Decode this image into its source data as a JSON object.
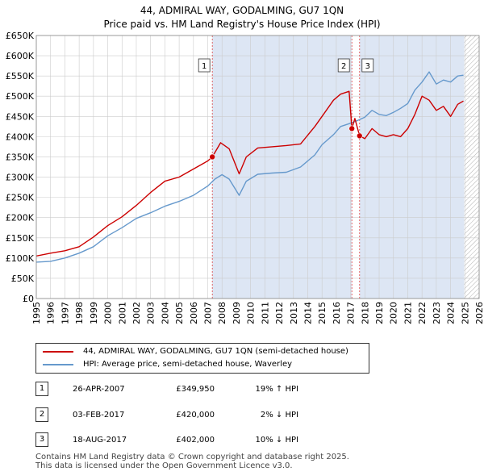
{
  "title_line1": "44, ADMIRAL WAY, GODALMING, GU7 1QN",
  "title_line2": "Price paid vs. HM Land Registry's House Price Index (HPI)",
  "colors": {
    "property": "#cc0000",
    "hpi": "#6699cc",
    "shade": "#dde6f4"
  },
  "legend": {
    "property_label": "44, ADMIRAL WAY, GODALMING, GU7 1QN (semi-detached house)",
    "hpi_label": "HPI: Average price, semi-detached house, Waverley"
  },
  "transactions": [
    {
      "num": "1",
      "date": "26-APR-2007",
      "price": "£349,950",
      "hpi": "19% ↑ HPI"
    },
    {
      "num": "2",
      "date": "03-FEB-2017",
      "price": "£420,000",
      "hpi": "2% ↓ HPI"
    },
    {
      "num": "3",
      "date": "18-AUG-2017",
      "price": "£402,000",
      "hpi": "10% ↓ HPI"
    }
  ],
  "footer_line1": "Contains HM Land Registry data © Crown copyright and database right 2025.",
  "footer_line2": "This data is licensed under the Open Government Licence v3.0.",
  "chart_data": {
    "type": "line",
    "title": "44, ADMIRAL WAY, GODALMING, GU7 1QN — Price paid vs. HM Land Registry's House Price Index (HPI)",
    "xlim": [
      1995,
      2026
    ],
    "ylim": [
      0,
      650000
    ],
    "x_ticks": [
      1995,
      1996,
      1997,
      1998,
      1999,
      2000,
      2001,
      2002,
      2003,
      2004,
      2005,
      2006,
      2007,
      2008,
      2009,
      2010,
      2011,
      2012,
      2013,
      2014,
      2015,
      2016,
      2017,
      2018,
      2019,
      2020,
      2021,
      2022,
      2023,
      2024,
      2025,
      2026
    ],
    "y_ticks": [
      0,
      50000,
      100000,
      150000,
      200000,
      250000,
      300000,
      350000,
      400000,
      450000,
      500000,
      550000,
      600000,
      650000
    ],
    "y_tick_labels": [
      "£0",
      "£50K",
      "£100K",
      "£150K",
      "£200K",
      "£250K",
      "£300K",
      "£350K",
      "£400K",
      "£450K",
      "£500K",
      "£550K",
      "£600K",
      "£650K"
    ],
    "grid": true,
    "shaded_periods": [
      [
        2007.32,
        2017.09
      ],
      [
        2017.63,
        2024.95
      ]
    ],
    "hatched_after": 2024.95,
    "event_markers": [
      {
        "label": "1",
        "x": 2007.32,
        "y": 349950
      },
      {
        "label": "2",
        "x": 2017.09,
        "y": 420000
      },
      {
        "label": "3",
        "x": 2017.63,
        "y": 402000
      }
    ],
    "series": [
      {
        "name": "44, ADMIRAL WAY, GODALMING, GU7 1QN (semi-detached house)",
        "x": [
          1995.0,
          1996.0,
          1997.0,
          1998.0,
          1999.0,
          2000.0,
          2001.0,
          2002.0,
          2003.0,
          2004.0,
          2005.0,
          2006.0,
          2007.0,
          2007.32,
          2007.9,
          2008.5,
          2009.2,
          2009.7,
          2010.5,
          2011.5,
          2012.5,
          2013.5,
          2014.5,
          2015.0,
          2015.8,
          2016.3,
          2016.9,
          2017.09,
          2017.3,
          2017.63,
          2018.0,
          2018.5,
          2019.0,
          2019.5,
          2020.0,
          2020.5,
          2021.0,
          2021.5,
          2022.0,
          2022.5,
          2023.0,
          2023.5,
          2024.0,
          2024.5,
          2024.9
        ],
        "values": [
          105000,
          112000,
          118000,
          128000,
          152000,
          180000,
          202000,
          230000,
          262000,
          290000,
          300000,
          320000,
          340000,
          349950,
          385000,
          370000,
          308000,
          350000,
          372000,
          375000,
          378000,
          382000,
          425000,
          450000,
          490000,
          505000,
          512000,
          420000,
          445000,
          402000,
          395000,
          420000,
          405000,
          400000,
          405000,
          400000,
          420000,
          455000,
          500000,
          490000,
          465000,
          475000,
          450000,
          480000,
          488000
        ]
      },
      {
        "name": "HPI: Average price, semi-detached house, Waverley",
        "x": [
          1995.0,
          1996.0,
          1997.0,
          1998.0,
          1999.0,
          2000.0,
          2001.0,
          2002.0,
          2003.0,
          2004.0,
          2005.0,
          2006.0,
          2007.0,
          2007.5,
          2008.0,
          2008.5,
          2009.2,
          2009.7,
          2010.5,
          2011.5,
          2012.5,
          2013.5,
          2014.5,
          2015.0,
          2015.8,
          2016.3,
          2016.9,
          2017.5,
          2018.0,
          2018.5,
          2019.0,
          2019.5,
          2020.0,
          2020.5,
          2021.0,
          2021.5,
          2022.0,
          2022.5,
          2023.0,
          2023.5,
          2024.0,
          2024.5,
          2024.9
        ],
        "values": [
          90000,
          92000,
          100000,
          112000,
          128000,
          155000,
          175000,
          198000,
          212000,
          228000,
          240000,
          255000,
          278000,
          295000,
          306000,
          295000,
          255000,
          290000,
          307000,
          310000,
          312000,
          325000,
          355000,
          380000,
          405000,
          425000,
          432000,
          440000,
          448000,
          465000,
          455000,
          452000,
          460000,
          470000,
          482000,
          515000,
          535000,
          560000,
          530000,
          540000,
          535000,
          550000,
          552000
        ]
      }
    ]
  }
}
